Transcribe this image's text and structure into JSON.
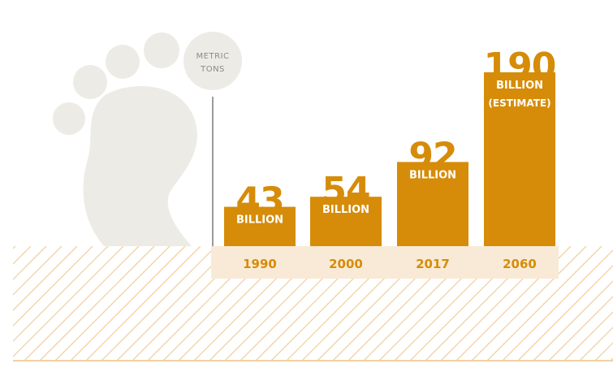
{
  "colors": {
    "bar": "#d68c08",
    "label_bg": "#f8ead6",
    "footprint": "#ecebe6",
    "hatch": "#efd2a2",
    "axis": "#7b7b7b",
    "badge_text": "#8c8c82"
  },
  "icons": {
    "footprint": "footprint-icon"
  },
  "badge": {
    "line1": "METRIC",
    "line2": "TONS"
  },
  "chart_data": {
    "type": "bar",
    "title": "",
    "xlabel": "",
    "ylabel": "METRIC TONS",
    "categories": [
      "1990",
      "2000",
      "2017",
      "2060"
    ],
    "values": [
      43,
      54,
      92,
      190
    ],
    "value_labels": [
      "43",
      "54",
      "92",
      "190"
    ],
    "unit_label": "BILLION",
    "annotations": [
      "",
      "",
      "",
      "(ESTIMATE)"
    ],
    "ylim": [
      0,
      200
    ],
    "grid": false,
    "legend": "none"
  }
}
